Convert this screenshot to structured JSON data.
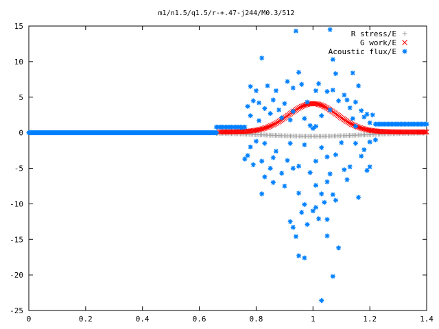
{
  "chart_data": {
    "type": "scatter",
    "title": "m1/n1.5/q1.5/r-+.47-j244/M0.3/512",
    "xlabel": "",
    "ylabel": "",
    "xlim": [
      0,
      1.4
    ],
    "ylim": [
      -25,
      15
    ],
    "xticks": [
      "0",
      "0.2",
      "0.4",
      "0.6",
      "0.8",
      "1",
      "1.2",
      "1.4"
    ],
    "yticks": [
      "15",
      "10",
      "5",
      "0",
      "-5",
      "-10",
      "-15",
      "-20",
      "-25"
    ],
    "grid": false,
    "legend_position": "top-right",
    "series": [
      {
        "name": "R stress/E",
        "marker": "+",
        "color": "#a0a0a0",
        "segments": [
          {
            "x_start": 0.66,
            "x_end": 1.4,
            "n": 140,
            "shape": "dip",
            "center": 1.0,
            "depth": 0.5,
            "width": 0.25
          }
        ],
        "points": []
      },
      {
        "name": "G work/E",
        "marker": "x",
        "color": "#ff0000",
        "segments": [
          {
            "x_start": 0.67,
            "x_end": 1.4,
            "n": 170,
            "shape": "peak",
            "center": 1.0,
            "height": 4.0,
            "width": 0.12,
            "base": 0.1
          }
        ],
        "points": []
      },
      {
        "name": "Acoustic flux/E",
        "marker": "*",
        "color": "#0080ff",
        "segments": [
          {
            "x_start": 0.0,
            "x_end": 0.66,
            "n": 200,
            "y": 0.0
          },
          {
            "x_start": 0.66,
            "x_end": 0.76,
            "n": 20,
            "y": 0.8
          },
          {
            "x_start": 1.22,
            "x_end": 1.4,
            "n": 40,
            "y": 1.2
          }
        ],
        "points": [
          [
            0.94,
            14.3
          ],
          [
            1.06,
            14.5
          ],
          [
            0.82,
            10.5
          ],
          [
            1.07,
            10.3
          ],
          [
            1.08,
            8.3
          ],
          [
            0.95,
            8.5
          ],
          [
            1.14,
            8.4
          ],
          [
            0.91,
            7.2
          ],
          [
            0.96,
            6.8
          ],
          [
            1.02,
            6.9
          ],
          [
            0.78,
            6.5
          ],
          [
            0.84,
            6.6
          ],
          [
            0.93,
            6.3
          ],
          [
            1.16,
            6.6
          ],
          [
            0.8,
            5.9
          ],
          [
            0.87,
            5.9
          ],
          [
            1.01,
            5.9
          ],
          [
            1.05,
            5.8
          ],
          [
            1.07,
            6.0
          ],
          [
            1.11,
            5.3
          ],
          [
            0.79,
            4.5
          ],
          [
            0.81,
            4.2
          ],
          [
            0.86,
            4.6
          ],
          [
            0.9,
            4.1
          ],
          [
            0.98,
            4.3
          ],
          [
            1.09,
            4.5
          ],
          [
            1.12,
            4.6
          ],
          [
            1.15,
            4.3
          ],
          [
            0.77,
            3.7
          ],
          [
            0.83,
            3.4
          ],
          [
            0.88,
            3.2
          ],
          [
            1.13,
            3.5
          ],
          [
            1.17,
            3.1
          ],
          [
            0.85,
            2.7
          ],
          [
            1.19,
            2.6
          ],
          [
            1.21,
            2.5
          ],
          [
            0.78,
            2.4
          ],
          [
            0.81,
            1.7
          ],
          [
            1.18,
            2.2
          ],
          [
            0.99,
            1.0
          ],
          [
            1.01,
            0.9
          ],
          [
            0.92,
            1.8
          ],
          [
            0.97,
            2.0
          ],
          [
            1.03,
            2.4
          ],
          [
            0.89,
            2.1
          ],
          [
            1.15,
            0.9
          ],
          [
            1.2,
            1.4
          ],
          [
            0.75,
            0.7
          ],
          [
            0.8,
            -1.2
          ],
          [
            0.78,
            -2.0
          ],
          [
            0.83,
            -1.5
          ],
          [
            0.87,
            -2.6
          ],
          [
            0.92,
            -1.5
          ],
          [
            0.97,
            -1.7
          ],
          [
            1.03,
            -2.1
          ],
          [
            1.1,
            -1.4
          ],
          [
            1.15,
            -1.5
          ],
          [
            1.2,
            -1.3
          ],
          [
            1.22,
            -1.0
          ],
          [
            0.77,
            -3.2
          ],
          [
            0.82,
            -4.0
          ],
          [
            0.79,
            -4.5
          ],
          [
            0.86,
            -3.5
          ],
          [
            0.91,
            -3.9
          ],
          [
            0.95,
            -4.7
          ],
          [
            1.01,
            -4.0
          ],
          [
            1.05,
            -3.4
          ],
          [
            1.08,
            -3.1
          ],
          [
            1.13,
            -4.8
          ],
          [
            1.17,
            -3.3
          ],
          [
            1.2,
            -4.8
          ],
          [
            0.85,
            -5.0
          ],
          [
            0.89,
            -5.7
          ],
          [
            0.93,
            -5.0
          ],
          [
            0.99,
            -5.6
          ],
          [
            1.06,
            -5.8
          ],
          [
            1.11,
            -5.2
          ],
          [
            1.19,
            -5.3
          ],
          [
            0.86,
            -7.0
          ],
          [
            0.9,
            -7.5
          ],
          [
            1.01,
            -7.4
          ],
          [
            1.05,
            -6.9
          ],
          [
            1.07,
            -8.7
          ],
          [
            0.82,
            -8.6
          ],
          [
            0.95,
            -8.5
          ],
          [
            1.03,
            -8.6
          ],
          [
            0.97,
            -10.1
          ],
          [
            1.01,
            -10.5
          ],
          [
            1.04,
            -9.8
          ],
          [
            1.08,
            -9.5
          ],
          [
            0.96,
            -11.2
          ],
          [
            1.0,
            -11.0
          ],
          [
            1.02,
            -12.1
          ],
          [
            0.92,
            -12.5
          ],
          [
            0.98,
            -12.9
          ],
          [
            1.05,
            -12.2
          ],
          [
            0.93,
            -13.3
          ],
          [
            1.16,
            -9.1
          ],
          [
            0.94,
            -14.6
          ],
          [
            1.05,
            -14.5
          ],
          [
            1.09,
            -16.2
          ],
          [
            0.95,
            -17.3
          ],
          [
            0.97,
            -17.6
          ],
          [
            1.07,
            -20.2
          ],
          [
            1.03,
            -23.6
          ],
          [
            0.83,
            -6.2
          ],
          [
            1.12,
            -6.6
          ],
          [
            0.76,
            -3.7
          ],
          [
            1.18,
            -2.4
          ],
          [
            1.0,
            0.6
          ],
          [
            1.14,
            2.0
          ],
          [
            0.93,
            3.0
          ],
          [
            1.06,
            3.2
          ]
        ]
      }
    ]
  }
}
